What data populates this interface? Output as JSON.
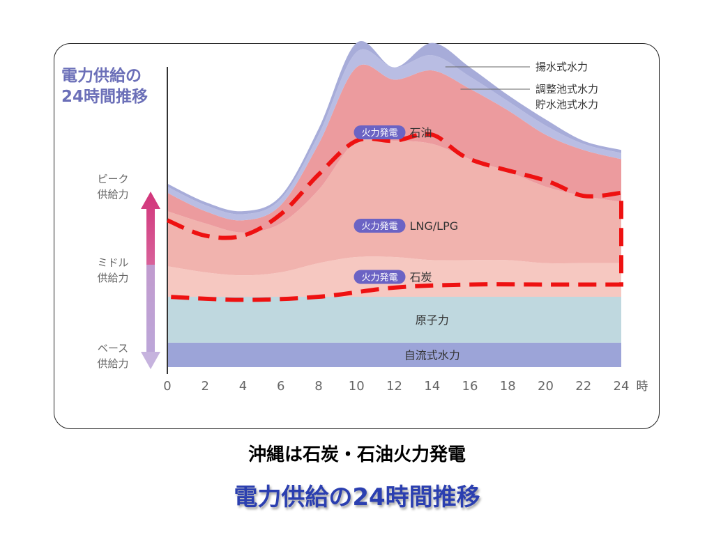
{
  "caption": "沖縄は石炭・石油火力発電",
  "footer_title": "電力供給の24時間推移",
  "colors": {
    "pumped_hydro": "#a7acd9",
    "regulating_hydro": "#b9bde3",
    "oil": "#ec9b9e",
    "lng": "#f1b3ae",
    "coal": "#f6c8c1",
    "nuclear": "#bfd8df",
    "run_of_river": "#9ca4d8",
    "peak_arrow": "#d2357a",
    "base_arrow": "#bca6d8",
    "badge": "#6b63c4",
    "dashed_outline": "#ee1111"
  },
  "chart_data": {
    "type": "area",
    "title": "電力供給の\n24時間推移",
    "title_lines": [
      "電力供給の",
      "24時間推移"
    ],
    "x_unit": "時",
    "x_ticks": [
      "0",
      "2",
      "4",
      "6",
      "8",
      "10",
      "12",
      "14",
      "16",
      "18",
      "20",
      "22",
      "24"
    ],
    "x": [
      0,
      2,
      4,
      6,
      8,
      10,
      12,
      14,
      16,
      18,
      20,
      22,
      24
    ],
    "ylim": [
      0,
      100
    ],
    "y_ticks_shown": false,
    "supply_levels": [
      {
        "label": "ピーク\n供給力",
        "lines": [
          "ピーク",
          "供給力"
        ],
        "level": "peak"
      },
      {
        "label": "ミドル\n供給力",
        "lines": [
          "ミドル",
          "供給力"
        ],
        "level": "middle"
      },
      {
        "label": "ベース\n供給力",
        "lines": [
          "ベース",
          "供給力"
        ],
        "level": "base"
      }
    ],
    "series": [
      {
        "name": "自流式水力",
        "label_style": "plain",
        "color_key": "run_of_river",
        "values": [
          8,
          8,
          8,
          8,
          8,
          8,
          8,
          8,
          8,
          8,
          8,
          8,
          8
        ]
      },
      {
        "name": "原子力",
        "label_style": "plain",
        "color_key": "nuclear",
        "values": [
          15,
          15,
          15,
          15,
          15,
          15,
          15,
          15,
          15,
          15,
          15,
          15,
          15
        ]
      },
      {
        "name": "石炭",
        "badge": "火力発電",
        "label_style": "badge",
        "color_key": "coal",
        "values": [
          10,
          8,
          7,
          8,
          11,
          13,
          13,
          12,
          12,
          12,
          11,
          11,
          11
        ]
      },
      {
        "name": "LNG/LPG",
        "badge": "火力発電",
        "label_style": "badge",
        "color_key": "lng",
        "values": [
          18,
          16,
          14,
          16,
          24,
          38,
          38,
          38,
          33,
          29,
          25,
          22,
          20
        ]
      },
      {
        "name": "石油",
        "badge": "火力発電",
        "label_style": "badge",
        "color_key": "oil",
        "values": [
          6,
          4,
          4,
          6,
          15,
          24,
          20,
          24,
          23,
          20,
          17,
          15,
          14
        ]
      },
      {
        "name": "調整池式水力\n貯水池式水力",
        "name_lines": [
          "調整池式水力",
          "貯水池式水力"
        ],
        "label_style": "callout",
        "color_key": "regulating_hydro",
        "values": [
          2,
          2,
          2,
          2,
          3,
          5,
          4,
          5,
          4,
          3,
          3,
          2,
          2
        ]
      },
      {
        "name": "揚水式水力",
        "label_style": "callout",
        "color_key": "pumped_hydro",
        "values": [
          1,
          1,
          1,
          1,
          2,
          3,
          0,
          4,
          3,
          2,
          2,
          1,
          1
        ]
      }
    ],
    "annotation_outline": {
      "style": "dashed",
      "color_key": "dashed_outline",
      "upper": [
        {
          "x": 0,
          "y": 48
        },
        {
          "x": 2,
          "y": 43
        },
        {
          "x": 4,
          "y": 43
        },
        {
          "x": 6,
          "y": 50
        },
        {
          "x": 8,
          "y": 63
        },
        {
          "x": 10,
          "y": 74
        },
        {
          "x": 12,
          "y": 74
        },
        {
          "x": 14,
          "y": 76
        },
        {
          "x": 16,
          "y": 68
        },
        {
          "x": 20,
          "y": 61
        },
        {
          "x": 22,
          "y": 56
        },
        {
          "x": 24,
          "y": 57
        }
      ],
      "lower": [
        {
          "x": 0,
          "y": 23
        },
        {
          "x": 4,
          "y": 22
        },
        {
          "x": 8,
          "y": 23
        },
        {
          "x": 12,
          "y": 26
        },
        {
          "x": 16,
          "y": 27
        },
        {
          "x": 20,
          "y": 27
        },
        {
          "x": 24,
          "y": 27
        }
      ]
    }
  }
}
